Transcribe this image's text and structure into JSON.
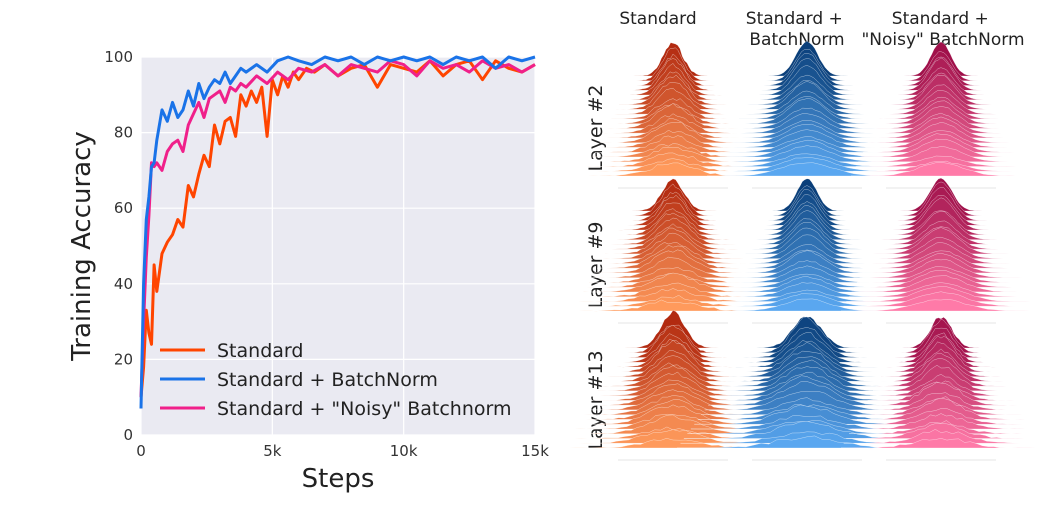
{
  "chart_data": [
    {
      "type": "line",
      "xlabel": "Steps",
      "ylabel": "Training Accuracy",
      "xlim": [
        0,
        15000
      ],
      "ylim": [
        0,
        100
      ],
      "xticks": [
        0,
        5000,
        10000,
        15000
      ],
      "xtick_labels": [
        "0",
        "5k",
        "10k",
        "15k"
      ],
      "yticks": [
        0,
        20,
        40,
        60,
        80,
        100
      ],
      "ytick_labels": [
        "0",
        "20",
        "40",
        "60",
        "80",
        "100"
      ],
      "grid": true,
      "legend_position": "lower-left",
      "series": [
        {
          "name": "Standard",
          "color": "#ff4500",
          "x": [
            0,
            100,
            200,
            300,
            400,
            500,
            600,
            800,
            1000,
            1200,
            1400,
            1600,
            1800,
            2000,
            2200,
            2400,
            2600,
            2800,
            3000,
            3200,
            3400,
            3600,
            3800,
            4000,
            4200,
            4400,
            4600,
            4800,
            5000,
            5200,
            5400,
            5600,
            5800,
            6000,
            6300,
            6600,
            7000,
            7500,
            8000,
            8500,
            9000,
            9500,
            10000,
            10500,
            11000,
            11500,
            12000,
            12500,
            13000,
            13500,
            14000,
            14500,
            15000
          ],
          "y": [
            10,
            18,
            33,
            27,
            24,
            45,
            38,
            48,
            51,
            53,
            57,
            55,
            66,
            63,
            69,
            74,
            71,
            82,
            77,
            83,
            84,
            79,
            90,
            87,
            91,
            88,
            92,
            79,
            94,
            90,
            95,
            92,
            96,
            94,
            97,
            96,
            98,
            95,
            97,
            98,
            92,
            98,
            97,
            96,
            99,
            95,
            98,
            99,
            94,
            99,
            97,
            96,
            98
          ]
        },
        {
          "name": "Standard + BatchNorm",
          "color": "#1a73e8",
          "x": [
            0,
            100,
            200,
            300,
            400,
            500,
            600,
            800,
            1000,
            1200,
            1400,
            1600,
            1800,
            2000,
            2200,
            2400,
            2600,
            2800,
            3000,
            3200,
            3400,
            3600,
            3800,
            4000,
            4400,
            4800,
            5200,
            5600,
            6000,
            6500,
            7000,
            7500,
            8000,
            8500,
            9000,
            9500,
            10000,
            10500,
            11000,
            11500,
            12000,
            12500,
            13000,
            13500,
            14000,
            14500,
            15000
          ],
          "y": [
            7,
            40,
            57,
            63,
            71,
            72,
            78,
            86,
            83,
            88,
            84,
            86,
            91,
            87,
            93,
            89,
            92,
            94,
            93,
            96,
            93,
            95,
            97,
            96,
            98,
            96,
            99,
            100,
            99,
            98,
            100,
            99,
            100,
            98,
            100,
            99,
            100,
            99,
            100,
            98,
            100,
            99,
            100,
            97,
            100,
            99,
            100
          ]
        },
        {
          "name": "Standard + \"Noisy\" Batchnorm",
          "color": "#f0208a",
          "x": [
            0,
            100,
            200,
            300,
            400,
            500,
            600,
            800,
            1000,
            1200,
            1400,
            1600,
            1800,
            2000,
            2200,
            2400,
            2600,
            2800,
            3000,
            3200,
            3400,
            3600,
            3800,
            4000,
            4400,
            4800,
            5200,
            5600,
            6000,
            6500,
            7000,
            7500,
            8000,
            8500,
            9000,
            9500,
            10000,
            10500,
            11000,
            11500,
            12000,
            12500,
            13000,
            13500,
            14000,
            14500,
            15000
          ],
          "y": [
            10,
            30,
            47,
            58,
            72,
            71,
            72,
            70,
            75,
            77,
            78,
            75,
            82,
            85,
            88,
            84,
            89,
            90,
            91,
            88,
            92,
            91,
            93,
            92,
            95,
            93,
            96,
            94,
            97,
            96,
            98,
            95,
            98,
            97,
            96,
            99,
            98,
            95,
            99,
            97,
            98,
            96,
            99,
            97,
            98,
            96,
            98
          ]
        }
      ]
    },
    {
      "type": "ridgeline-grid",
      "columns": [
        "Standard",
        "Standard +\nBatchNorm",
        "Standard +\n\"Noisy\" BatchNorm"
      ],
      "rows": [
        "Layer #2",
        "Layer #9",
        "Layer #13"
      ],
      "column_colors": [
        {
          "dark": "#b22a10",
          "light": "#ff9a5c"
        },
        {
          "dark": "#0a3f7a",
          "light": "#5aa7f0"
        },
        {
          "dark": "#a0104a",
          "light": "#ff7aa8"
        }
      ]
    }
  ]
}
